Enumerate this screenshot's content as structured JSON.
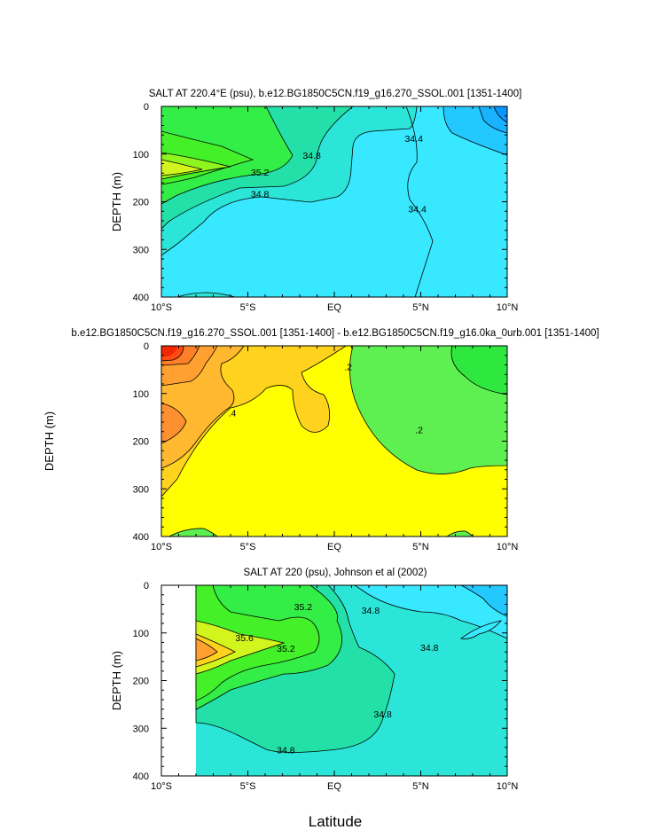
{
  "x_label": "Latitude",
  "y_label": "DEPTH (m)",
  "x_ticks": [
    "10°S",
    "5°S",
    "EQ",
    "5°N",
    "10°N"
  ],
  "x_tick_values": [
    -10,
    -5,
    0,
    5,
    10
  ],
  "y_ticks": [
    "0",
    "100",
    "200",
    "300",
    "400"
  ],
  "y_tick_values": [
    0,
    100,
    200,
    300,
    400
  ],
  "chart_data": [
    {
      "type": "heatmap",
      "title": "SALT AT 220.4°E (psu), b.e12.BG1850C5CN.f19_g16.270_SSOL.001 [1351-1400]",
      "xlabel": "",
      "ylabel": "DEPTH (m)",
      "xlim": [
        -10,
        10
      ],
      "ylim": [
        0,
        400
      ],
      "y_reversed": true,
      "contour_labels": [
        {
          "text": "35.2",
          "x": -4.3,
          "y": 138
        },
        {
          "text": "34.8",
          "x": -4.3,
          "y": 183
        },
        {
          "text": "34.8",
          "x": -1.3,
          "y": 102
        },
        {
          "text": "34.4",
          "x": 4.6,
          "y": 67
        },
        {
          "text": "34.4",
          "x": 4.8,
          "y": 215
        }
      ]
    },
    {
      "type": "heatmap",
      "title": "b.e12.BG1850C5CN.f19_g16.270_SSOL.001 [1351-1400] - b.e12.BG1850C5CN.f19_g16.0ka_0urb.001 [1351-1400]",
      "xlabel": "",
      "ylabel": "DEPTH (m)",
      "xlim": [
        -10,
        10
      ],
      "ylim": [
        0,
        400
      ],
      "y_reversed": true,
      "contour_labels": [
        {
          "text": ".4",
          "x": -5.9,
          "y": 140
        },
        {
          "text": ".2",
          "x": 0.8,
          "y": 44
        },
        {
          "text": ".2",
          "x": 4.9,
          "y": 176
        }
      ]
    },
    {
      "type": "heatmap",
      "title": "SALT AT 220 (psu), Johnson et al (2002)",
      "xlabel": "Latitude",
      "ylabel": "DEPTH (m)",
      "xlim": [
        -10,
        10
      ],
      "ylim": [
        0,
        400
      ],
      "y_reversed": true,
      "data_xlim": [
        -8,
        10
      ],
      "contour_labels": [
        {
          "text": "35.2",
          "x": -1.8,
          "y": 45
        },
        {
          "text": "35.6",
          "x": -5.2,
          "y": 110
        },
        {
          "text": "35.2",
          "x": -2.8,
          "y": 132
        },
        {
          "text": "34.8",
          "x": 2.1,
          "y": 52
        },
        {
          "text": "34.8",
          "x": 5.5,
          "y": 130
        },
        {
          "text": "34.8",
          "x": 2.8,
          "y": 270
        },
        {
          "text": "34.8",
          "x": -2.8,
          "y": 345
        }
      ]
    }
  ]
}
